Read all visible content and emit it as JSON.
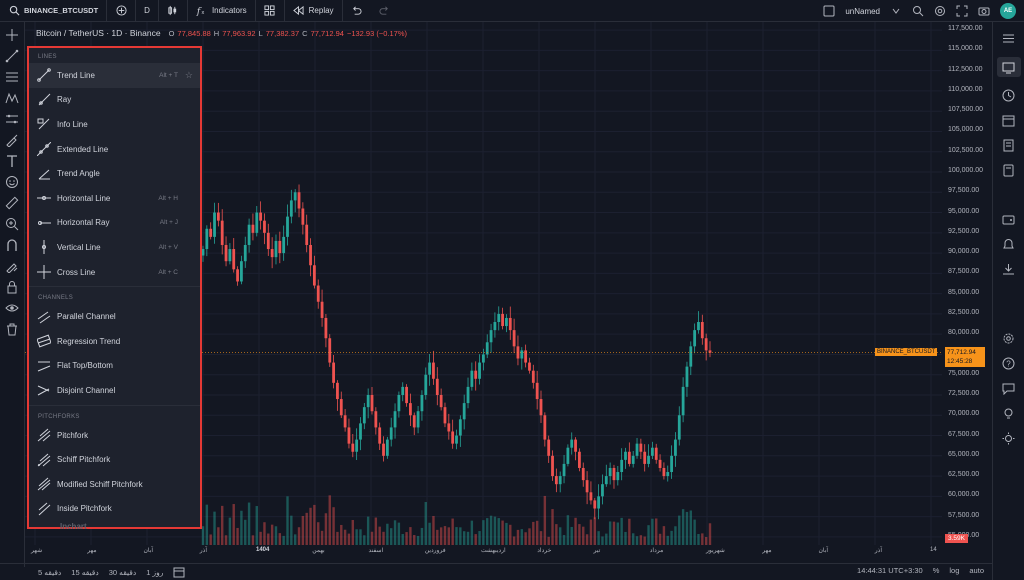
{
  "topbar": {
    "symbol": "BINANCE_BTCUSDT",
    "interval": "D",
    "indicators": "Indicators",
    "replay": "Replay",
    "layout_name": "unNamed",
    "avatar": "AE"
  },
  "legend": {
    "title": "Bitcoin / TetherUS · 1D · Binance",
    "o_label": "O",
    "o": "77,845.88",
    "h_label": "H",
    "h": "77,963.92",
    "l_label": "L",
    "l": "77,382.37",
    "c_label": "C",
    "c": "77,712.94",
    "change": "−132.93 (−0.17%)"
  },
  "price_scale": {
    "labels": [
      "117,500.00",
      "115,000.00",
      "112,500.00",
      "110,000.00",
      "107,500.00",
      "105,000.00",
      "102,500.00",
      "100,000.00",
      "97,500.00",
      "95,000.00",
      "92,500.00",
      "90,000.00",
      "87,500.00",
      "85,000.00",
      "82,500.00",
      "80,000.00",
      "77,500.00",
      "75,000.00",
      "72,500.00",
      "70,000.00",
      "67,500.00",
      "65,000.00",
      "62,500.00",
      "60,000.00",
      "57,500.00",
      "55,000.00"
    ],
    "last_price": "77,712.94",
    "countdown": "12:45:28",
    "symbol_tag": "BINANCE_BTCUSDT",
    "volume_tag": "3.59K"
  },
  "time_scale": [
    "شهر",
    "مهر",
    "آبان",
    "آذر",
    "1404",
    "بهمن",
    "اسفند",
    "فروردین",
    "اردیبهشت",
    "خرداد",
    "تیر",
    "مرداد",
    "شهریور",
    "مهر",
    "آبان",
    "آذر",
    "14"
  ],
  "bottom_bar": {
    "ranges": [
      "5 دقیقه",
      "15 دقیقه",
      "30 دقیقه",
      "1 روز"
    ],
    "time": "14:44:31 UTC+3:30",
    "percent": "%",
    "log": "log",
    "auto": "auto"
  },
  "drawing_menu": {
    "sections": [
      {
        "title": "LINES",
        "items": [
          {
            "label": "Trend Line",
            "hotkey": "Alt + T",
            "icon": "trend-line-icon",
            "starred": true
          },
          {
            "label": "Ray",
            "hotkey": "",
            "icon": "ray-icon"
          },
          {
            "label": "Info Line",
            "hotkey": "",
            "icon": "info-line-icon"
          },
          {
            "label": "Extended Line",
            "hotkey": "",
            "icon": "extended-line-icon"
          },
          {
            "label": "Trend Angle",
            "hotkey": "",
            "icon": "trend-angle-icon"
          },
          {
            "label": "Horizontal Line",
            "hotkey": "Alt + H",
            "icon": "horizontal-line-icon"
          },
          {
            "label": "Horizontal Ray",
            "hotkey": "Alt + J",
            "icon": "horizontal-ray-icon"
          },
          {
            "label": "Vertical Line",
            "hotkey": "Alt + V",
            "icon": "vertical-line-icon"
          },
          {
            "label": "Cross Line",
            "hotkey": "Alt + C",
            "icon": "cross-line-icon"
          }
        ]
      },
      {
        "title": "CHANNELS",
        "items": [
          {
            "label": "Parallel Channel",
            "hotkey": "",
            "icon": "parallel-channel-icon"
          },
          {
            "label": "Regression Trend",
            "hotkey": "",
            "icon": "regression-trend-icon"
          },
          {
            "label": "Flat Top/Bottom",
            "hotkey": "",
            "icon": "flat-top-bottom-icon"
          },
          {
            "label": "Disjoint Channel",
            "hotkey": "",
            "icon": "disjoint-channel-icon"
          }
        ]
      },
      {
        "title": "PITCHFORKS",
        "items": [
          {
            "label": "Pitchfork",
            "hotkey": "",
            "icon": "pitchfork-icon"
          },
          {
            "label": "Schiff Pitchfork",
            "hotkey": "",
            "icon": "schiff-pitchfork-icon"
          },
          {
            "label": "Modified Schiff Pitchfork",
            "hotkey": "",
            "icon": "modified-schiff-pitchfork-icon"
          },
          {
            "label": "Inside Pitchfork",
            "hotkey": "",
            "icon": "inside-pitchfork-icon"
          }
        ]
      }
    ]
  },
  "watermark": "Inchart",
  "colors": {
    "up": "#26a69a",
    "down": "#ef5350",
    "accent": "#f7931a",
    "highlight": "#e53935"
  },
  "chart_data": {
    "type": "candlestick",
    "ylim": [
      54000,
      118500
    ],
    "closes": [
      90500,
      93000,
      92000,
      95000,
      94000,
      91000,
      89000,
      90500,
      88000,
      86500,
      89000,
      91000,
      93500,
      92500,
      95000,
      94000,
      92500,
      90500,
      89500,
      91500,
      90000,
      92000,
      94500,
      96500,
      97500,
      95500,
      93500,
      91000,
      88500,
      86000,
      84000,
      82000,
      79500,
      76500,
      74000,
      72000,
      70000,
      68500,
      66500,
      65500,
      67000,
      69000,
      71000,
      72500,
      70500,
      68500,
      66500,
      65000,
      67000,
      68500,
      70500,
      72500,
      73500,
      71500,
      70000,
      68500,
      70500,
      72500,
      75000,
      76500,
      74500,
      72500,
      71000,
      69000,
      68000,
      66500,
      67500,
      69500,
      71500,
      73500,
      75500,
      74500,
      76500,
      77500,
      79000,
      80500,
      81500,
      82500,
      81000,
      82000,
      80500,
      78500,
      77000,
      78000,
      76500,
      75500,
      74000,
      72000,
      70000,
      67000,
      65000,
      62500,
      61500,
      62500,
      64000,
      66000,
      67000,
      65500,
      63500,
      62000,
      60500,
      59500,
      58500,
      60000,
      61500,
      62500,
      63500,
      62000,
      63000,
      64500,
      65500,
      64000,
      65000,
      66500,
      65500,
      64000,
      65000,
      66000,
      64500,
      63500,
      62500,
      63000,
      65000,
      67000,
      70000,
      73500,
      76000,
      78500,
      80500,
      81500,
      79500,
      78000,
      77713
    ],
    "volume_label": "3.59K"
  }
}
